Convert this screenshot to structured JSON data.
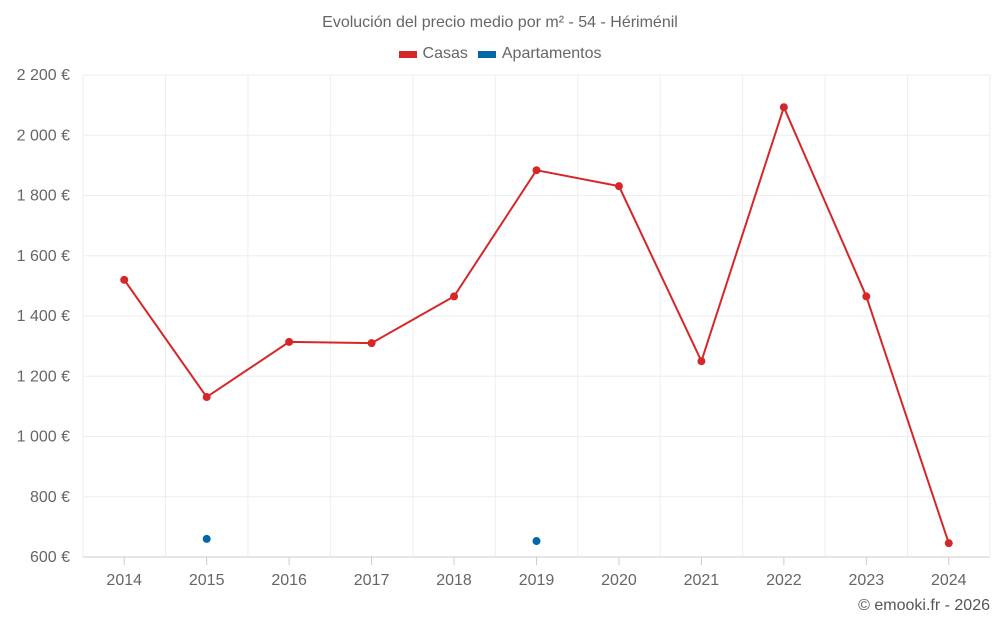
{
  "chart_data": {
    "type": "line",
    "title": "Evolución del precio medio por m² - 54 - Hériménil",
    "categories": [
      "2014",
      "2015",
      "2016",
      "2017",
      "2018",
      "2019",
      "2020",
      "2021",
      "2022",
      "2023",
      "2024"
    ],
    "series": [
      {
        "name": "Casas",
        "color": "#d62728",
        "values": [
          1520,
          1131,
          1314,
          1310,
          1465,
          1884,
          1831,
          1250,
          2093,
          1465,
          646
        ]
      },
      {
        "name": "Apartamentos",
        "color": "#0068a8",
        "values": [
          null,
          660,
          null,
          null,
          null,
          653,
          null,
          null,
          null,
          null,
          null
        ]
      }
    ],
    "yticks": [
      600,
      800,
      1000,
      1200,
      1400,
      1600,
      1800,
      2000,
      2200
    ],
    "ytick_labels": [
      "600 €",
      "800 €",
      "1 000 €",
      "1 200 €",
      "1 400 €",
      "1 600 €",
      "1 800 €",
      "2 000 €",
      "2 200 €"
    ],
    "ylim": [
      600,
      2200
    ],
    "grid": true,
    "legend_position": "top-center",
    "xlabel": "",
    "ylabel": ""
  },
  "credit": "© emooki.fr - 2026"
}
